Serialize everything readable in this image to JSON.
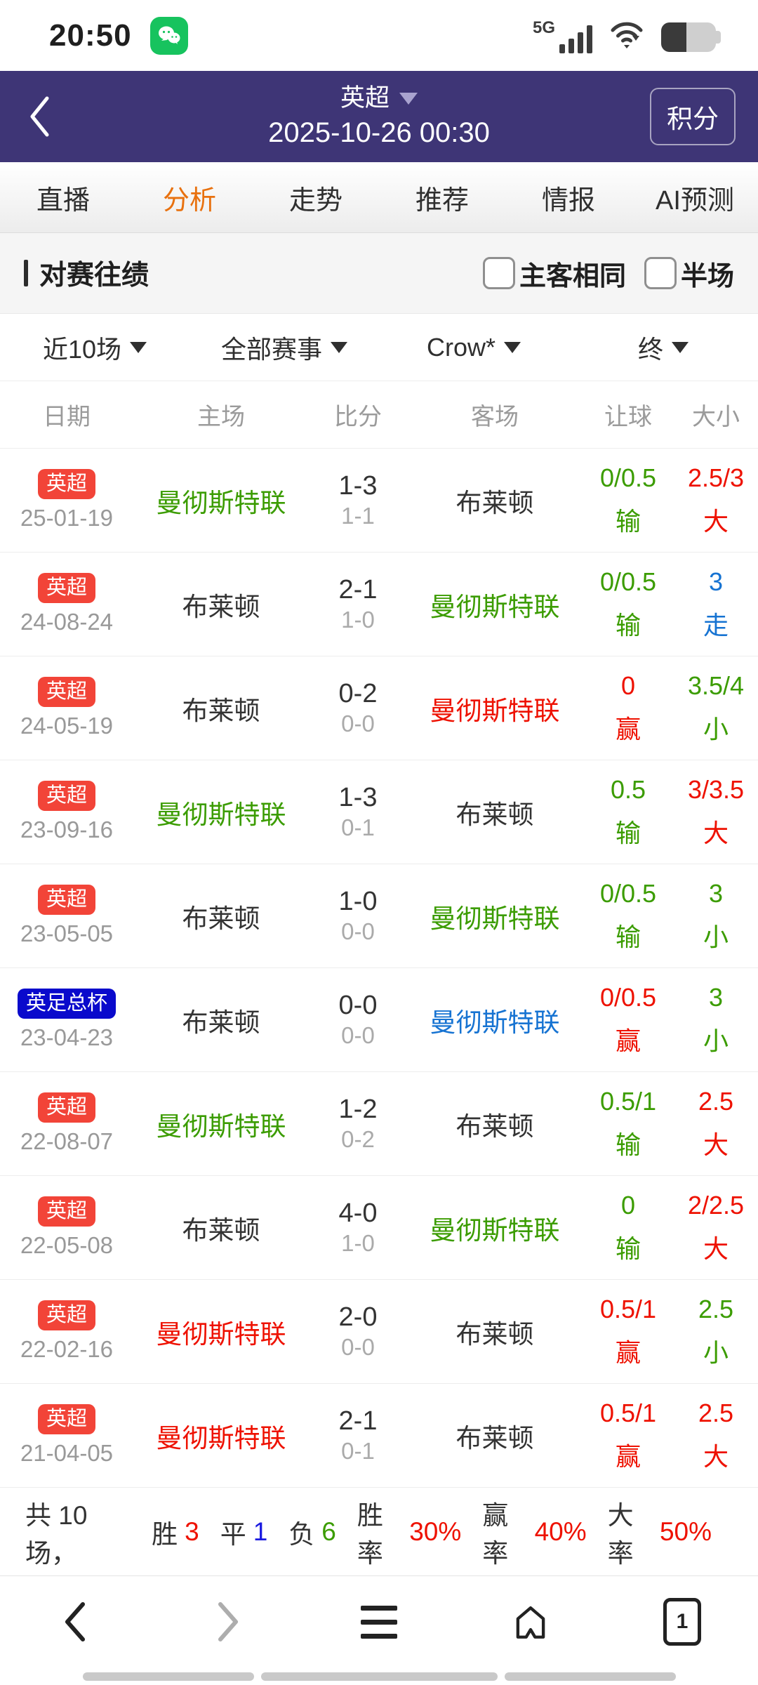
{
  "status_bar": {
    "time": "20:50",
    "network_label": "5G"
  },
  "header": {
    "league": "英超",
    "datetime": "2025-10-26 00:30",
    "standings_button": "积分"
  },
  "tabs": [
    {
      "label": "直播",
      "active": false
    },
    {
      "label": "分析",
      "active": true
    },
    {
      "label": "走势",
      "active": false
    },
    {
      "label": "推荐",
      "active": false
    },
    {
      "label": "情报",
      "active": false
    },
    {
      "label": "AI预测",
      "active": false
    }
  ],
  "section": {
    "title": "对赛往绩",
    "checkboxes": [
      {
        "label": "主客相同",
        "checked": false
      },
      {
        "label": "半场",
        "checked": false
      }
    ]
  },
  "filters": [
    {
      "label": "近10场"
    },
    {
      "label": "全部赛事"
    },
    {
      "label": "Crow*"
    },
    {
      "label": "终"
    }
  ],
  "table": {
    "columns": [
      "日期",
      "主场",
      "比分",
      "客场",
      "让球",
      "大小"
    ],
    "rows": [
      {
        "league": "英超",
        "league_color": "red",
        "date": "25-01-19",
        "home": "曼彻斯特联",
        "home_color": "green",
        "ft": "1-3",
        "ht": "1-1",
        "away": "布莱顿",
        "away_color": "dark",
        "handicap": "0/0.5",
        "handicap_result": "输",
        "handicap_color": "green",
        "ou": "2.5/3",
        "ou_result": "大",
        "ou_color": "red"
      },
      {
        "league": "英超",
        "league_color": "red",
        "date": "24-08-24",
        "home": "布莱顿",
        "home_color": "dark",
        "ft": "2-1",
        "ht": "1-0",
        "away": "曼彻斯特联",
        "away_color": "green",
        "handicap": "0/0.5",
        "handicap_result": "输",
        "handicap_color": "green",
        "ou": "3",
        "ou_result": "走",
        "ou_color": "blue"
      },
      {
        "league": "英超",
        "league_color": "red",
        "date": "24-05-19",
        "home": "布莱顿",
        "home_color": "dark",
        "ft": "0-2",
        "ht": "0-0",
        "away": "曼彻斯特联",
        "away_color": "red",
        "handicap": "0",
        "handicap_result": "赢",
        "handicap_color": "red",
        "ou": "3.5/4",
        "ou_result": "小",
        "ou_color": "green"
      },
      {
        "league": "英超",
        "league_color": "red",
        "date": "23-09-16",
        "home": "曼彻斯特联",
        "home_color": "green",
        "ft": "1-3",
        "ht": "0-1",
        "away": "布莱顿",
        "away_color": "dark",
        "handicap": "0.5",
        "handicap_result": "输",
        "handicap_color": "green",
        "ou": "3/3.5",
        "ou_result": "大",
        "ou_color": "red"
      },
      {
        "league": "英超",
        "league_color": "red",
        "date": "23-05-05",
        "home": "布莱顿",
        "home_color": "dark",
        "ft": "1-0",
        "ht": "0-0",
        "away": "曼彻斯特联",
        "away_color": "green",
        "handicap": "0/0.5",
        "handicap_result": "输",
        "handicap_color": "green",
        "ou": "3",
        "ou_result": "小",
        "ou_color": "green"
      },
      {
        "league": "英足总杯",
        "league_color": "blue",
        "date": "23-04-23",
        "home": "布莱顿",
        "home_color": "dark",
        "ft": "0-0",
        "ht": "0-0",
        "away": "曼彻斯特联",
        "away_color": "blue",
        "handicap": "0/0.5",
        "handicap_result": "赢",
        "handicap_color": "red",
        "ou": "3",
        "ou_result": "小",
        "ou_color": "green"
      },
      {
        "league": "英超",
        "league_color": "red",
        "date": "22-08-07",
        "home": "曼彻斯特联",
        "home_color": "green",
        "ft": "1-2",
        "ht": "0-2",
        "away": "布莱顿",
        "away_color": "dark",
        "handicap": "0.5/1",
        "handicap_result": "输",
        "handicap_color": "green",
        "ou": "2.5",
        "ou_result": "大",
        "ou_color": "red"
      },
      {
        "league": "英超",
        "league_color": "red",
        "date": "22-05-08",
        "home": "布莱顿",
        "home_color": "dark",
        "ft": "4-0",
        "ht": "1-0",
        "away": "曼彻斯特联",
        "away_color": "green",
        "handicap": "0",
        "handicap_result": "输",
        "handicap_color": "green",
        "ou": "2/2.5",
        "ou_result": "大",
        "ou_color": "red"
      },
      {
        "league": "英超",
        "league_color": "red",
        "date": "22-02-16",
        "home": "曼彻斯特联",
        "home_color": "red",
        "ft": "2-0",
        "ht": "0-0",
        "away": "布莱顿",
        "away_color": "dark",
        "handicap": "0.5/1",
        "handicap_result": "赢",
        "handicap_color": "red",
        "ou": "2.5",
        "ou_result": "小",
        "ou_color": "green"
      },
      {
        "league": "英超",
        "league_color": "red",
        "date": "21-04-05",
        "home": "曼彻斯特联",
        "home_color": "red",
        "ft": "2-1",
        "ht": "0-1",
        "away": "布莱顿",
        "away_color": "dark",
        "handicap": "0.5/1",
        "handicap_result": "赢",
        "handicap_color": "red",
        "ou": "2.5",
        "ou_result": "大",
        "ou_color": "red"
      }
    ]
  },
  "summary": {
    "lead": "共 10 场，",
    "stats": [
      {
        "label": "胜",
        "value": "3",
        "color": "red"
      },
      {
        "label": "平",
        "value": "1",
        "color": "indigo"
      },
      {
        "label": "负",
        "value": "6",
        "color": "green"
      },
      {
        "label": "胜率",
        "value": "30%",
        "color": "red"
      },
      {
        "label": "赢率",
        "value": "40%",
        "color": "red"
      },
      {
        "label": "大率",
        "value": "50%",
        "color": "red"
      }
    ]
  },
  "bottom_nav": {
    "tab_count": "1"
  },
  "colors": {
    "header_purple": "#3e3576",
    "active_tab_orange": "#e8710f",
    "win_red": "#ee1100",
    "loss_green": "#3b9c00",
    "draw_blue": "#1673d2",
    "badge_red": "#f24438",
    "badge_blue": "#0a0acc"
  }
}
